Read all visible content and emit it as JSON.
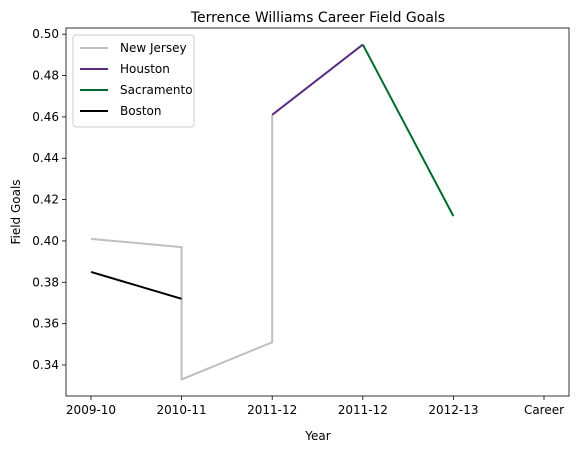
{
  "chart_data": {
    "type": "line",
    "title": "Terrence Williams Career Field Goals",
    "xlabel": "Year",
    "ylabel": "Field Goals",
    "x_tick_labels": [
      "2009-10",
      "2010-11",
      "2011-12",
      "2011-12",
      "2012-13",
      "Career"
    ],
    "ylim": [
      0.325,
      0.503
    ],
    "y_ticks": [
      0.34,
      0.36,
      0.38,
      0.4,
      0.42,
      0.44,
      0.46,
      0.48,
      0.5
    ],
    "grid": false,
    "legend_position": "top-left",
    "series": [
      {
        "name": "New Jersey",
        "color": "#bfbfbf",
        "points": [
          [
            0,
            0.401
          ],
          [
            1,
            0.397
          ],
          [
            1,
            0.333
          ],
          [
            2,
            0.351
          ],
          [
            2,
            0.461
          ]
        ]
      },
      {
        "name": "Houston",
        "color": "#5a2d82",
        "points": [
          [
            2,
            0.461
          ],
          [
            3,
            0.495
          ]
        ]
      },
      {
        "name": "Sacramento",
        "color": "#006b2e",
        "points": [
          [
            3,
            0.495
          ],
          [
            4,
            0.412
          ]
        ]
      },
      {
        "name": "Boston",
        "color": "#000000",
        "points": [
          [
            0,
            0.385
          ],
          [
            1,
            0.372
          ]
        ]
      }
    ]
  }
}
